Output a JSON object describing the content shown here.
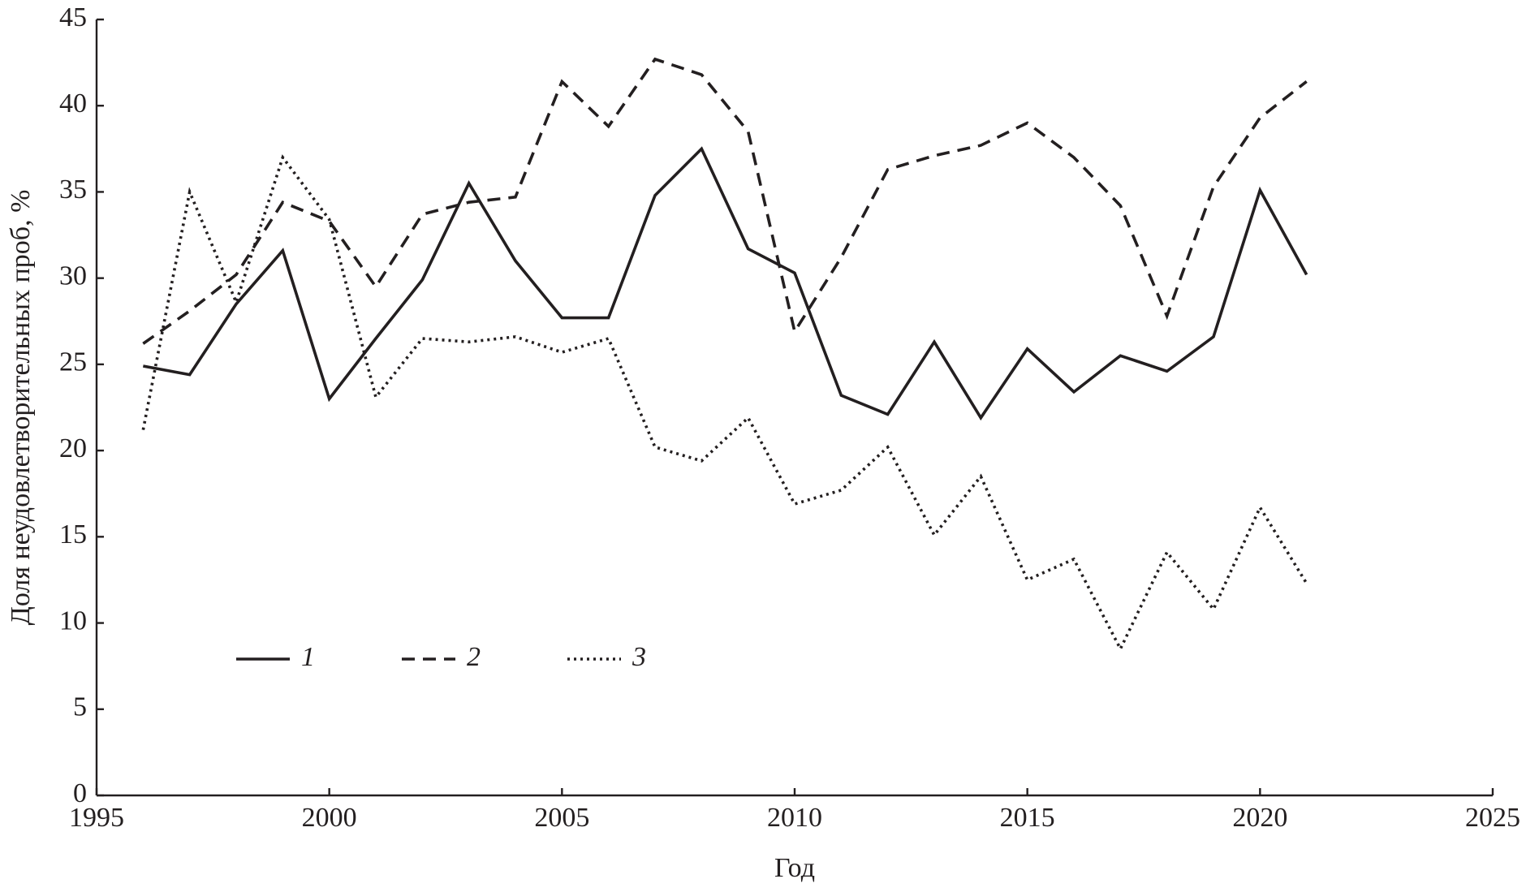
{
  "chart_data": {
    "type": "line",
    "x_label": "Год",
    "y_label": "Доля неудовлетворительных проб, %",
    "x": [
      1996,
      1997,
      1998,
      1999,
      2000,
      2001,
      2002,
      2003,
      2004,
      2005,
      2006,
      2007,
      2008,
      2009,
      2010,
      2011,
      2012,
      2013,
      2014,
      2015,
      2016,
      2017,
      2018,
      2019,
      2020,
      2021
    ],
    "series": [
      {
        "name": "1",
        "color": "#231f20",
        "dash": "solid",
        "values": [
          24.9,
          24.4,
          28.5,
          31.6,
          23.0,
          26.5,
          29.9,
          35.5,
          31.0,
          27.7,
          27.7,
          34.8,
          37.5,
          31.7,
          30.3,
          23.2,
          22.1,
          26.3,
          21.9,
          25.9,
          23.4,
          25.5,
          24.6,
          26.6,
          35.1,
          30.2
        ]
      },
      {
        "name": "2",
        "color": "#231f20",
        "dash": "dashed",
        "values": [
          26.2,
          28.1,
          30.2,
          34.4,
          33.3,
          29.5,
          33.7,
          34.4,
          34.7,
          41.4,
          38.8,
          42.7,
          41.8,
          38.5,
          26.9,
          31.2,
          36.3,
          37.1,
          37.7,
          39.0,
          37.0,
          34.2,
          27.8,
          35.3,
          39.3,
          41.4
        ]
      },
      {
        "name": "3",
        "color": "#231f20",
        "dash": "dotted",
        "values": [
          21.2,
          35.0,
          28.6,
          37.0,
          33.4,
          23.1,
          26.5,
          26.3,
          26.6,
          25.7,
          26.5,
          20.2,
          19.4,
          21.9,
          16.9,
          17.7,
          20.2,
          15.1,
          18.5,
          12.5,
          13.7,
          8.5,
          14.1,
          10.8,
          16.7,
          12.3
        ]
      }
    ],
    "xlim": [
      1995,
      2025
    ],
    "xticks": [
      1995,
      2000,
      2005,
      2010,
      2015,
      2020,
      2025
    ],
    "ylim": [
      0,
      45
    ],
    "yticks": [
      0,
      5,
      10,
      15,
      20,
      25,
      30,
      35,
      40,
      45
    ],
    "grid": false,
    "legend": "bottom-left"
  }
}
